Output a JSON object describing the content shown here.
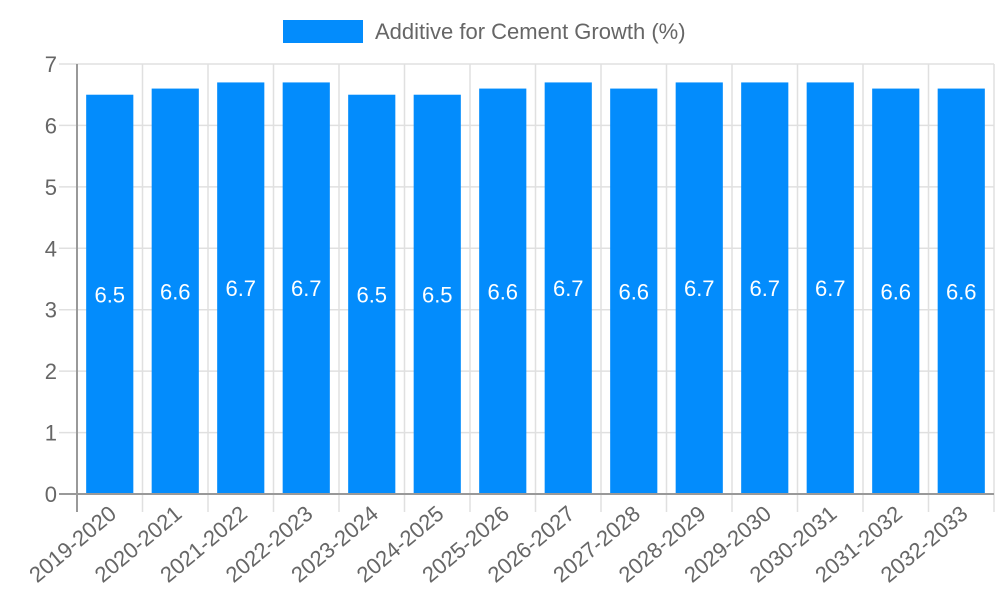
{
  "legend": {
    "label": "Additive for Cement Growth (%)",
    "color": "#038cfc"
  },
  "chart_data": {
    "type": "bar",
    "title": "",
    "xlabel": "",
    "ylabel": "",
    "ylim": [
      0,
      7
    ],
    "yticks": [
      0,
      1,
      2,
      3,
      4,
      5,
      6,
      7
    ],
    "grid": true,
    "legend_position": "top",
    "categories": [
      "2019-2020",
      "2020-2021",
      "2021-2022",
      "2022-2023",
      "2023-2024",
      "2024-2025",
      "2025-2026",
      "2026-2027",
      "2027-2028",
      "2028-2029",
      "2029-2030",
      "2030-2031",
      "2031-2032",
      "2032-2033"
    ],
    "series": [
      {
        "name": "Additive for Cement Growth (%)",
        "color": "#038cfc",
        "values": [
          6.5,
          6.6,
          6.7,
          6.7,
          6.5,
          6.5,
          6.6,
          6.7,
          6.6,
          6.7,
          6.7,
          6.7,
          6.6,
          6.6
        ],
        "labels": [
          "6.5",
          "6.6",
          "6.7",
          "6.7",
          "6.5",
          "6.5",
          "6.6",
          "6.7",
          "6.6",
          "6.7",
          "6.7",
          "6.7",
          "6.6",
          "6.6"
        ]
      }
    ]
  }
}
